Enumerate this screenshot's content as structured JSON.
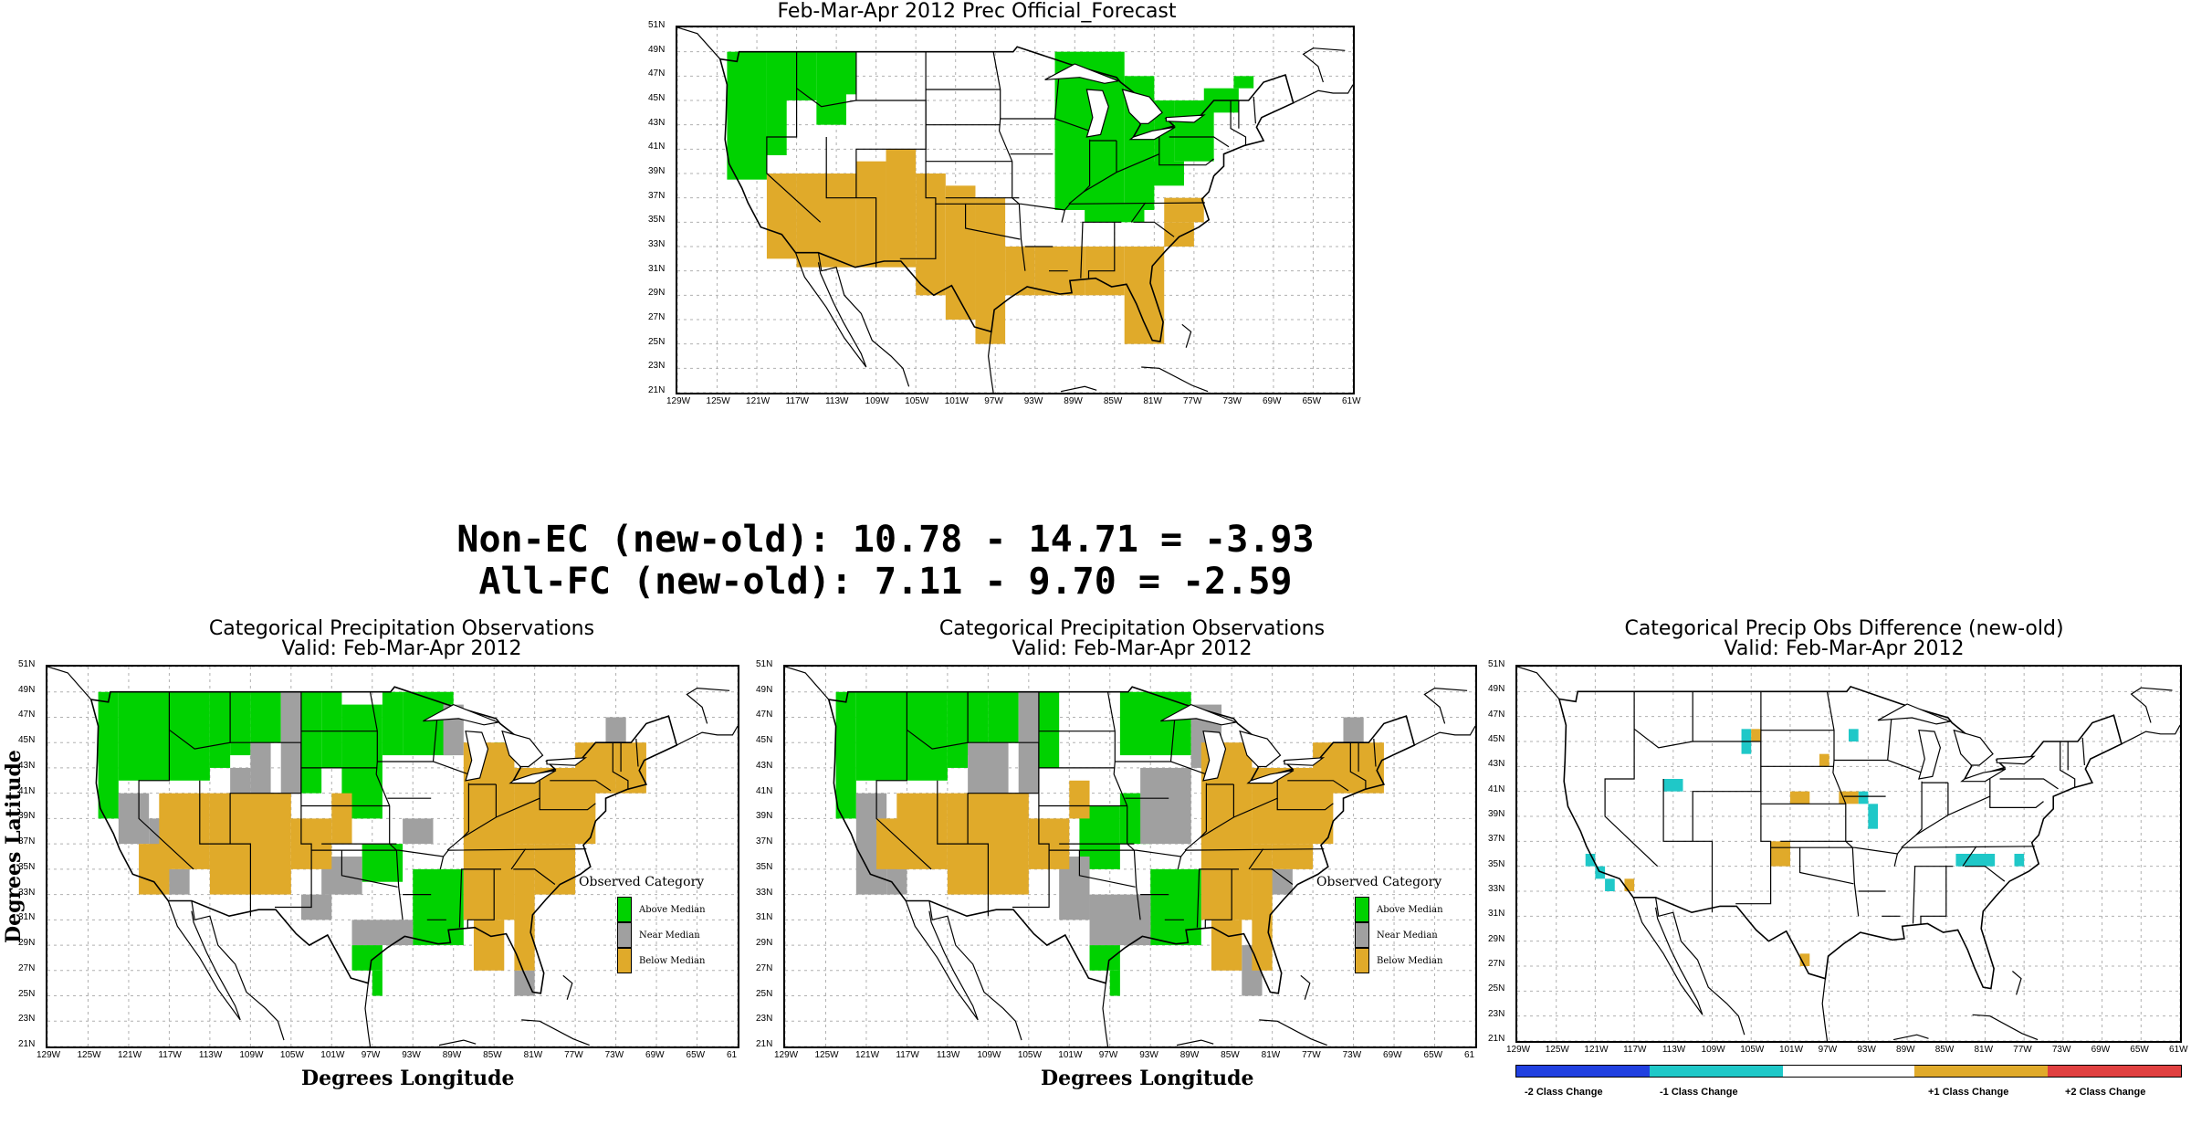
{
  "top_map": {
    "title": "Feb-Mar-Apr 2012 Prec Official_Forecast"
  },
  "stats": {
    "line1": "Non-EC (new-old): 10.78 - 14.71 = -3.93",
    "line2": "All-FC (new-old): 7.11 - 9.70 = -2.59"
  },
  "obs_left": {
    "title1": "Categorical Precipitation Observations",
    "title2": "Valid: Feb-Mar-Apr 2012",
    "ylabel": "Degrees Latitude",
    "xlabel": "Degrees Longitude",
    "legend_title": "Observed Category",
    "legend_items": [
      "Above Median",
      "Near Median",
      "Below Median"
    ]
  },
  "obs_mid": {
    "title1": "Categorical Precipitation Observations",
    "title2": "Valid: Feb-Mar-Apr 2012",
    "xlabel": "Degrees Longitude",
    "legend_title": "Observed Category",
    "legend_items": [
      "Above Median",
      "Near Median",
      "Below Median"
    ]
  },
  "diff_map": {
    "title1": "Categorical Precip Obs Difference (new-old)",
    "title2": "Valid: Feb-Mar-Apr 2012",
    "bar_labels": [
      "-2 Class Change",
      "-1 Class Change",
      "+1 Class Change",
      "+2 Class Change"
    ]
  },
  "lat_ticks": [
    "51N",
    "49N",
    "47N",
    "45N",
    "43N",
    "41N",
    "39N",
    "37N",
    "35N",
    "33N",
    "31N",
    "29N",
    "27N",
    "25N",
    "23N",
    "21N"
  ],
  "lon_ticks_top": [
    "129W",
    "125W",
    "121W",
    "117W",
    "113W",
    "109W",
    "105W",
    "101W",
    "97W",
    "93W",
    "89W",
    "85W",
    "81W",
    "77W",
    "73W",
    "69W",
    "65W",
    "61W"
  ],
  "lon_ticks_obs": [
    "129W",
    "125W",
    "121W",
    "117W",
    "113W",
    "109W",
    "105W",
    "101W",
    "97W",
    "93W",
    "89W",
    "85W",
    "81W",
    "77W",
    "73W",
    "69W",
    "65W",
    "61"
  ],
  "lon_ticks_diff": [
    "129W",
    "125W",
    "121W",
    "117W",
    "113W",
    "109W",
    "105W",
    "101W",
    "97W",
    "93W",
    "89W",
    "85W",
    "81W",
    "77W",
    "73W",
    "69W",
    "65W",
    "61W"
  ],
  "colors": {
    "above": "#00d200",
    "near": "#a0a0a0",
    "below": "#e0aa2a",
    "minus1": "#1fc8c8",
    "minus2": "#2040e0",
    "plus1": "#e0aa2a",
    "plus2": "#e04040",
    "grid": "#b0b0b0"
  }
}
